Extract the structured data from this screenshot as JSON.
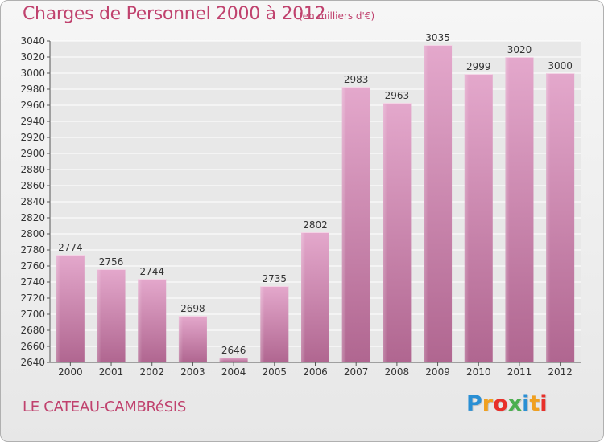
{
  "header": {
    "title": "Charges de Personnel 2000 à 2012",
    "subtitle": "(en milliers d'€)"
  },
  "footer": {
    "commune": "LE CATEAU-CAMBRéSIS",
    "logo_letters": [
      "P",
      "r",
      "o",
      "x",
      "i",
      "t",
      "i"
    ],
    "logo_colors": [
      "#2a8fd4",
      "#f0a020",
      "#e8302a",
      "#4caf50",
      "#2a8fd4",
      "#f0a020",
      "#e8302a"
    ]
  },
  "colors": {
    "title": "#c0426e",
    "bar_top": "#e4a8cc",
    "bar_bottom": "#b06690",
    "grid": "#ffffff",
    "plot_bg": "#e8e8e8"
  },
  "chart_data": {
    "type": "bar",
    "title": "Charges de Personnel 2000 à 2012",
    "subtitle": "(en milliers d'€)",
    "categories": [
      "2000",
      "2001",
      "2002",
      "2003",
      "2004",
      "2005",
      "2006",
      "2007",
      "2008",
      "2009",
      "2010",
      "2011",
      "2012"
    ],
    "values": [
      2774,
      2756,
      2744,
      2698,
      2646,
      2735,
      2802,
      2983,
      2963,
      3035,
      2999,
      3020,
      3000
    ],
    "ylim": [
      2640,
      3040
    ],
    "ytick_step": 20,
    "grid": true,
    "legend": "none"
  }
}
